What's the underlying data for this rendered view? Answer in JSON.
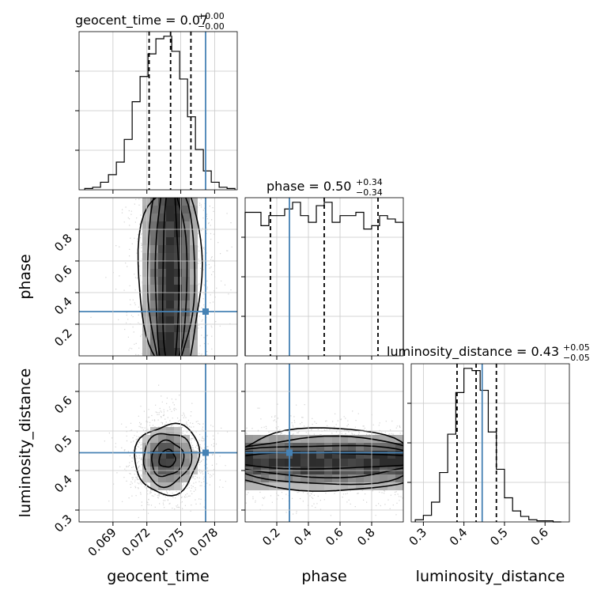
{
  "chart_data": {
    "type": "corner",
    "parameters": [
      "geocent_time",
      "phase",
      "luminosity_distance"
    ],
    "truths": {
      "geocent_time": 0.0772,
      "phase": 0.28,
      "luminosity_distance": 0.445
    },
    "colors": {
      "truth": "#4682b4",
      "hist": "#000000",
      "grid": "#c8c8c8",
      "samples": "#808080"
    },
    "grid": true,
    "diagonal": [
      {
        "param": "geocent_time",
        "title": "geocent_time = 0.07",
        "sup": "+0.00",
        "sub": "−0.00",
        "xlim": [
          0.066,
          0.08
        ],
        "quantiles": [
          0.0722,
          0.0741,
          0.0759
        ],
        "bin_edges": [
          0.0665,
          0.0672,
          0.0679,
          0.0686,
          0.0693,
          0.07,
          0.0707,
          0.0714,
          0.0721,
          0.0728,
          0.0735,
          0.0742,
          0.0749,
          0.0756,
          0.0763,
          0.077,
          0.0777,
          0.0784,
          0.0791,
          0.0798
        ],
        "counts": [
          1,
          2,
          6,
          12,
          22,
          40,
          70,
          90,
          108,
          120,
          122,
          110,
          88,
          58,
          32,
          15,
          6,
          2,
          1
        ]
      },
      {
        "param": "phase",
        "title": "phase = 0.50",
        "sup": "+0.34",
        "sub": "−0.34",
        "xlim": [
          0,
          1
        ],
        "quantiles": [
          0.16,
          0.5,
          0.84
        ],
        "bin_edges": [
          0.0,
          0.05,
          0.1,
          0.15,
          0.2,
          0.25,
          0.3,
          0.35,
          0.4,
          0.45,
          0.5,
          0.55,
          0.6,
          0.65,
          0.7,
          0.75,
          0.8,
          0.85,
          0.9,
          0.95,
          1.0
        ],
        "counts": [
          86,
          86,
          78,
          84,
          84,
          88,
          92,
          84,
          80,
          90,
          92,
          80,
          84,
          84,
          86,
          76,
          78,
          84,
          82,
          80
        ]
      },
      {
        "param": "luminosity_distance",
        "title": "luminosity_distance = 0.43",
        "sup": "+0.05",
        "sub": "−0.05",
        "xlim": [
          0.27,
          0.66
        ],
        "quantiles": [
          0.383,
          0.43,
          0.48
        ],
        "bin_edges": [
          0.28,
          0.3,
          0.32,
          0.34,
          0.36,
          0.38,
          0.4,
          0.42,
          0.44,
          0.46,
          0.48,
          0.5,
          0.52,
          0.54,
          0.56,
          0.58,
          0.6,
          0.62,
          0.64
        ],
        "counts": [
          2,
          6,
          18,
          45,
          80,
          118,
          140,
          138,
          120,
          82,
          48,
          22,
          10,
          5,
          2,
          1,
          1,
          0
        ]
      }
    ],
    "axes": {
      "geocent_time": {
        "label": "geocent_time",
        "ticks": [
          0.069,
          0.072,
          0.075,
          0.078
        ],
        "tick_labels": [
          "0.069",
          "0.072",
          "0.075",
          "0.078"
        ]
      },
      "phase": {
        "label": "phase",
        "ticks": [
          0.2,
          0.4,
          0.6,
          0.8
        ],
        "tick_labels": [
          "0.2",
          "0.4",
          "0.6",
          "0.8"
        ]
      },
      "luminosity_distance": {
        "label": "luminosity_distance",
        "ylim": [
          0.27,
          0.67
        ],
        "ticks": [
          0.3,
          0.4,
          0.5,
          0.6
        ],
        "tick_labels": [
          "0.3",
          "0.4",
          "0.5",
          "0.6"
        ]
      }
    },
    "joint": [
      {
        "x": "geocent_time",
        "y": "phase",
        "x_center": 0.0741,
        "x_sigma": 0.0014,
        "y_center": 0.5,
        "y_sigma": 0.29
      },
      {
        "x": "geocent_time",
        "y": "luminosity_distance",
        "x_center": 0.0738,
        "x_sigma": 0.0014,
        "y_center": 0.43,
        "y_sigma": 0.045
      },
      {
        "x": "phase",
        "y": "luminosity_distance",
        "x_center": 0.5,
        "x_sigma": 0.29,
        "y_center": 0.425,
        "y_sigma": 0.04
      }
    ]
  }
}
